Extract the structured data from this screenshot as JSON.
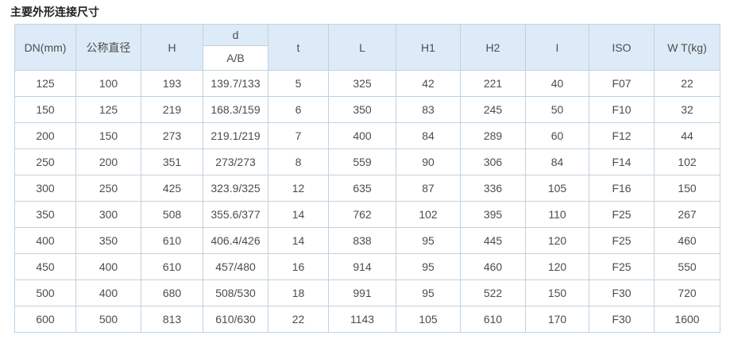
{
  "page": {
    "title": "主要外形连接尺寸"
  },
  "colors": {
    "header_bg": "#dcebf7",
    "border": "#c3d1dc",
    "text": "#4d4d4d",
    "title_text": "#1f1f1f"
  },
  "table": {
    "header_top": [
      "DN(mm)",
      "公称直径",
      "H",
      "d",
      "t",
      "L",
      "H1",
      "H2",
      "I",
      "ISO",
      "W T(kg)"
    ],
    "header_sub": "A/B",
    "rows": [
      [
        "125",
        "100",
        "193",
        "139.7/133",
        "5",
        "325",
        "42",
        "221",
        "40",
        "F07",
        "22"
      ],
      [
        "150",
        "125",
        "219",
        "168.3/159",
        "6",
        "350",
        "83",
        "245",
        "50",
        "F10",
        "32"
      ],
      [
        "200",
        "150",
        "273",
        "219.1/219",
        "7",
        "400",
        "84",
        "289",
        "60",
        "F12",
        "44"
      ],
      [
        "250",
        "200",
        "351",
        "273/273",
        "8",
        "559",
        "90",
        "306",
        "84",
        "F14",
        "102"
      ],
      [
        "300",
        "250",
        "425",
        "323.9/325",
        "12",
        "635",
        "87",
        "336",
        "105",
        "F16",
        "150"
      ],
      [
        "350",
        "300",
        "508",
        "355.6/377",
        "14",
        "762",
        "102",
        "395",
        "110",
        "F25",
        "267"
      ],
      [
        "400",
        "350",
        "610",
        "406.4/426",
        "14",
        "838",
        "95",
        "445",
        "120",
        "F25",
        "460"
      ],
      [
        "450",
        "400",
        "610",
        "457/480",
        "16",
        "914",
        "95",
        "460",
        "120",
        "F25",
        "550"
      ],
      [
        "500",
        "400",
        "680",
        "508/530",
        "18",
        "991",
        "95",
        "522",
        "150",
        "F30",
        "720"
      ],
      [
        "600",
        "500",
        "813",
        "610/630",
        "22",
        "1143",
        "105",
        "610",
        "170",
        "F30",
        "1600"
      ]
    ]
  }
}
